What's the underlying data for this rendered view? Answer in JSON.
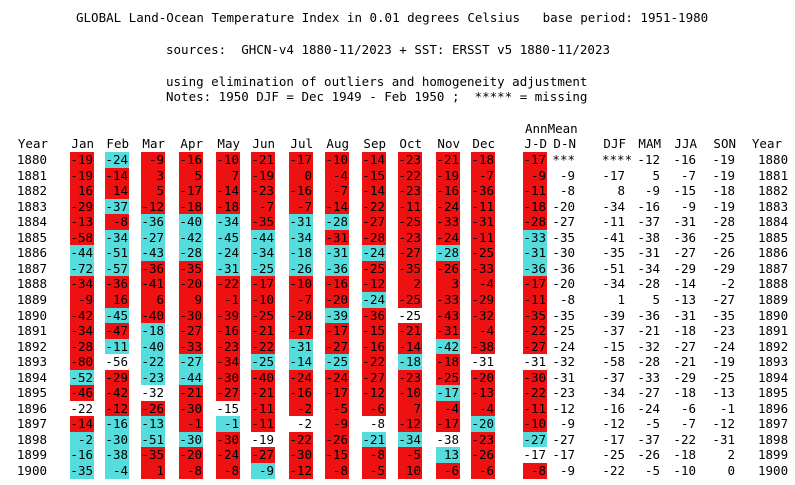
{
  "header": {
    "title": "GLOBAL Land-Ocean Temperature Index in 0.01 degrees Celsius   base period: 1951-1980",
    "sources": "sources:  GHCN-v4 1880-11/2023 + SST: ERSST v5 1880-11/2023",
    "method": "using elimination of outliers and homogeneity adjustment",
    "notes": "Notes: 1950 DJF = Dec 1949 - Feb 1950 ;  ***** = missing"
  },
  "table": {
    "annmean_label": "AnnMean",
    "columns": [
      "Year",
      "Jan",
      "Feb",
      "Mar",
      "Apr",
      "May",
      "Jun",
      "Jul",
      "Aug",
      "Sep",
      "Oct",
      "Nov",
      "Dec",
      "J-D",
      "D-N",
      "DJF",
      "MAM",
      "JJA",
      "SON",
      "Year"
    ],
    "colors": {
      "warm": "#ee1111",
      "cool": "#55dddd",
      "neutral": "#ffffff"
    },
    "rows": [
      {
        "year": "1880",
        "v": [
          "-19",
          "-24",
          "-9",
          "-16",
          "-10",
          "-21",
          "-17",
          "-10",
          "-14",
          "-23",
          "-21",
          "-18",
          "-17",
          "***",
          "****",
          "-12",
          "-16",
          "-19",
          "1880"
        ],
        "c": [
          "r",
          "c",
          "r",
          "r",
          "r",
          "r",
          "r",
          "r",
          "r",
          "r",
          "r",
          "r",
          "r",
          "n",
          "n",
          "n",
          "n",
          "n",
          "n"
        ]
      },
      {
        "year": "1881",
        "v": [
          "-19",
          "-14",
          "3",
          "5",
          "7",
          "-19",
          "0",
          "-4",
          "-15",
          "-22",
          "-19",
          "-7",
          "-9",
          "-9",
          "-17",
          "5",
          "-7",
          "-19",
          "1881"
        ],
        "c": [
          "r",
          "r",
          "r",
          "r",
          "r",
          "r",
          "r",
          "r",
          "r",
          "r",
          "r",
          "r",
          "r",
          "n",
          "n",
          "n",
          "n",
          "n",
          "n"
        ]
      },
      {
        "year": "1882",
        "v": [
          "16",
          "14",
          "5",
          "-17",
          "-14",
          "-23",
          "-16",
          "-7",
          "-14",
          "-23",
          "-16",
          "-36",
          "-11",
          "-8",
          "8",
          "-9",
          "-15",
          "-18",
          "1882"
        ],
        "c": [
          "r",
          "r",
          "r",
          "r",
          "r",
          "r",
          "r",
          "r",
          "r",
          "r",
          "r",
          "r",
          "r",
          "n",
          "n",
          "n",
          "n",
          "n",
          "n"
        ]
      },
      {
        "year": "1883",
        "v": [
          "-29",
          "-37",
          "-12",
          "-18",
          "-18",
          "-7",
          "-7",
          "-14",
          "-22",
          "-11",
          "-24",
          "-11",
          "-18",
          "-20",
          "-34",
          "-16",
          "-9",
          "-19",
          "1883"
        ],
        "c": [
          "r",
          "c",
          "r",
          "r",
          "r",
          "r",
          "r",
          "r",
          "r",
          "r",
          "r",
          "r",
          "r",
          "n",
          "n",
          "n",
          "n",
          "n",
          "n"
        ]
      },
      {
        "year": "1884",
        "v": [
          "-13",
          "-8",
          "-36",
          "-40",
          "-34",
          "-35",
          "-31",
          "-28",
          "-27",
          "-25",
          "-33",
          "-31",
          "-28",
          "-27",
          "-11",
          "-37",
          "-31",
          "-28",
          "1884"
        ],
        "c": [
          "r",
          "r",
          "c",
          "c",
          "c",
          "r",
          "c",
          "c",
          "r",
          "r",
          "r",
          "r",
          "r",
          "n",
          "n",
          "n",
          "n",
          "n",
          "n"
        ]
      },
      {
        "year": "1885",
        "v": [
          "-58",
          "-34",
          "-27",
          "-42",
          "-45",
          "-44",
          "-34",
          "-31",
          "-28",
          "-23",
          "-24",
          "-11",
          "-33",
          "-35",
          "-41",
          "-38",
          "-36",
          "-25",
          "1885"
        ],
        "c": [
          "r",
          "c",
          "c",
          "c",
          "c",
          "c",
          "c",
          "r",
          "r",
          "r",
          "r",
          "r",
          "c",
          "n",
          "n",
          "n",
          "n",
          "n",
          "n"
        ]
      },
      {
        "year": "1886",
        "v": [
          "-44",
          "-51",
          "-43",
          "-28",
          "-24",
          "-34",
          "-18",
          "-31",
          "-24",
          "-27",
          "-28",
          "-25",
          "-31",
          "-30",
          "-35",
          "-31",
          "-27",
          "-26",
          "1886"
        ],
        "c": [
          "c",
          "c",
          "c",
          "c",
          "c",
          "c",
          "c",
          "c",
          "c",
          "r",
          "c",
          "r",
          "c",
          "n",
          "n",
          "n",
          "n",
          "n",
          "n"
        ]
      },
      {
        "year": "1887",
        "v": [
          "-72",
          "-57",
          "-36",
          "-35",
          "-31",
          "-25",
          "-26",
          "-36",
          "-25",
          "-35",
          "-26",
          "-33",
          "-36",
          "-36",
          "-51",
          "-34",
          "-29",
          "-29",
          "1887"
        ],
        "c": [
          "c",
          "c",
          "r",
          "r",
          "c",
          "c",
          "c",
          "c",
          "r",
          "r",
          "r",
          "r",
          "c",
          "n",
          "n",
          "n",
          "n",
          "n",
          "n"
        ]
      },
      {
        "year": "1888",
        "v": [
          "-34",
          "-36",
          "-41",
          "-20",
          "-22",
          "-17",
          "-10",
          "-16",
          "-12",
          "2",
          "3",
          "-4",
          "-17",
          "-20",
          "-34",
          "-28",
          "-14",
          "-2",
          "1888"
        ],
        "c": [
          "r",
          "r",
          "r",
          "r",
          "r",
          "r",
          "r",
          "r",
          "r",
          "r",
          "r",
          "r",
          "r",
          "n",
          "n",
          "n",
          "n",
          "n",
          "n"
        ]
      },
      {
        "year": "1889",
        "v": [
          "-9",
          "16",
          "6",
          "9",
          "-1",
          "-10",
          "-7",
          "-20",
          "-24",
          "-25",
          "-33",
          "-29",
          "-11",
          "-8",
          "1",
          "5",
          "-13",
          "-27",
          "1889"
        ],
        "c": [
          "r",
          "r",
          "r",
          "r",
          "r",
          "r",
          "r",
          "r",
          "c",
          "r",
          "r",
          "r",
          "r",
          "n",
          "n",
          "n",
          "n",
          "n",
          "n"
        ]
      },
      {
        "year": "1890",
        "v": [
          "-42",
          "-45",
          "-40",
          "-30",
          "-39",
          "-25",
          "-28",
          "-39",
          "-36",
          "-25",
          "-43",
          "-32",
          "-35",
          "-35",
          "-39",
          "-36",
          "-31",
          "-35",
          "1890"
        ],
        "c": [
          "r",
          "c",
          "r",
          "r",
          "r",
          "r",
          "r",
          "c",
          "r",
          "n",
          "r",
          "r",
          "r",
          "n",
          "n",
          "n",
          "n",
          "n",
          "n"
        ]
      },
      {
        "year": "1891",
        "v": [
          "-34",
          "-47",
          "-18",
          "-27",
          "-16",
          "-21",
          "-17",
          "-17",
          "-15",
          "-21",
          "-31",
          "-4",
          "-22",
          "-25",
          "-37",
          "-21",
          "-18",
          "-23",
          "1891"
        ],
        "c": [
          "r",
          "r",
          "c",
          "r",
          "r",
          "r",
          "r",
          "r",
          "r",
          "r",
          "r",
          "r",
          "r",
          "n",
          "n",
          "n",
          "n",
          "n",
          "n"
        ]
      },
      {
        "year": "1892",
        "v": [
          "-28",
          "-11",
          "-40",
          "-33",
          "-23",
          "-22",
          "-31",
          "-27",
          "-16",
          "-14",
          "-42",
          "-38",
          "-27",
          "-24",
          "-15",
          "-32",
          "-27",
          "-24",
          "1892"
        ],
        "c": [
          "r",
          "c",
          "c",
          "r",
          "r",
          "r",
          "c",
          "r",
          "r",
          "r",
          "c",
          "r",
          "r",
          "n",
          "n",
          "n",
          "n",
          "n",
          "n"
        ]
      },
      {
        "year": "1893",
        "v": [
          "-80",
          "-56",
          "-22",
          "-27",
          "-34",
          "-25",
          "-14",
          "-25",
          "-22",
          "-18",
          "-18",
          "-31",
          "-31",
          "-32",
          "-58",
          "-28",
          "-21",
          "-19",
          "1893"
        ],
        "c": [
          "r",
          "n",
          "c",
          "c",
          "r",
          "c",
          "c",
          "c",
          "r",
          "c",
          "r",
          "n",
          "n",
          "n",
          "n",
          "n",
          "n",
          "n",
          "n"
        ]
      },
      {
        "year": "1894",
        "v": [
          "-52",
          "-29",
          "-23",
          "-44",
          "-30",
          "-40",
          "-24",
          "-24",
          "-27",
          "-23",
          "-25",
          "-20",
          "-30",
          "-31",
          "-37",
          "-33",
          "-29",
          "-25",
          "1894"
        ],
        "c": [
          "c",
          "r",
          "c",
          "c",
          "r",
          "r",
          "r",
          "r",
          "r",
          "r",
          "r",
          "r",
          "r",
          "n",
          "n",
          "n",
          "n",
          "n",
          "n"
        ]
      },
      {
        "year": "1895",
        "v": [
          "-46",
          "-42",
          "-32",
          "-21",
          "-27",
          "-21",
          "-16",
          "-17",
          "-12",
          "-10",
          "-17",
          "-13",
          "-22",
          "-23",
          "-34",
          "-27",
          "-18",
          "-13",
          "1895"
        ],
        "c": [
          "r",
          "r",
          "n",
          "r",
          "r",
          "r",
          "r",
          "r",
          "r",
          "r",
          "c",
          "r",
          "r",
          "n",
          "n",
          "n",
          "n",
          "n",
          "n"
        ]
      },
      {
        "year": "1896",
        "v": [
          "-22",
          "-12",
          "-26",
          "-30",
          "-15",
          "-11",
          "-2",
          "-5",
          "-6",
          "7",
          "-4",
          "-4",
          "-11",
          "-12",
          "-16",
          "-24",
          "-6",
          "-1",
          "1896"
        ],
        "c": [
          "n",
          "r",
          "r",
          "r",
          "n",
          "r",
          "r",
          "r",
          "r",
          "r",
          "r",
          "r",
          "r",
          "n",
          "n",
          "n",
          "n",
          "n",
          "n"
        ]
      },
      {
        "year": "1897",
        "v": [
          "-14",
          "-16",
          "-13",
          "-1",
          "-1",
          "-11",
          "-2",
          "-9",
          "-8",
          "-12",
          "-17",
          "-20",
          "-10",
          "-9",
          "-12",
          "-5",
          "-7",
          "-12",
          "1897"
        ],
        "c": [
          "r",
          "c",
          "c",
          "r",
          "c",
          "r",
          "n",
          "r",
          "n",
          "r",
          "r",
          "c",
          "r",
          "n",
          "n",
          "n",
          "n",
          "n",
          "n"
        ]
      },
      {
        "year": "1898",
        "v": [
          "-2",
          "-30",
          "-51",
          "-30",
          "-30",
          "-19",
          "-22",
          "-26",
          "-21",
          "-34",
          "-38",
          "-23",
          "-27",
          "-27",
          "-17",
          "-37",
          "-22",
          "-31",
          "1898"
        ],
        "c": [
          "c",
          "c",
          "c",
          "c",
          "r",
          "n",
          "r",
          "r",
          "c",
          "c",
          "n",
          "r",
          "c",
          "n",
          "n",
          "n",
          "n",
          "n",
          "n"
        ]
      },
      {
        "year": "1899",
        "v": [
          "-16",
          "-38",
          "-35",
          "-20",
          "-24",
          "-27",
          "-30",
          "-15",
          "-8",
          "-5",
          "13",
          "-26",
          "-17",
          "-17",
          "-25",
          "-26",
          "-18",
          "2",
          "1899"
        ],
        "c": [
          "c",
          "c",
          "r",
          "r",
          "r",
          "r",
          "r",
          "r",
          "r",
          "r",
          "c",
          "r",
          "n",
          "n",
          "n",
          "n",
          "n",
          "n",
          "n"
        ]
      },
      {
        "year": "1900",
        "v": [
          "-35",
          "-4",
          "1",
          "-8",
          "-8",
          "-9",
          "-12",
          "-8",
          "-5",
          "10",
          "-6",
          "-6",
          "-8",
          "-9",
          "-22",
          "-5",
          "-10",
          "0",
          "1900"
        ],
        "c": [
          "c",
          "c",
          "r",
          "r",
          "r",
          "c",
          "r",
          "r",
          "r",
          "r",
          "r",
          "r",
          "r",
          "n",
          "n",
          "n",
          "n",
          "n",
          "n"
        ]
      }
    ]
  }
}
